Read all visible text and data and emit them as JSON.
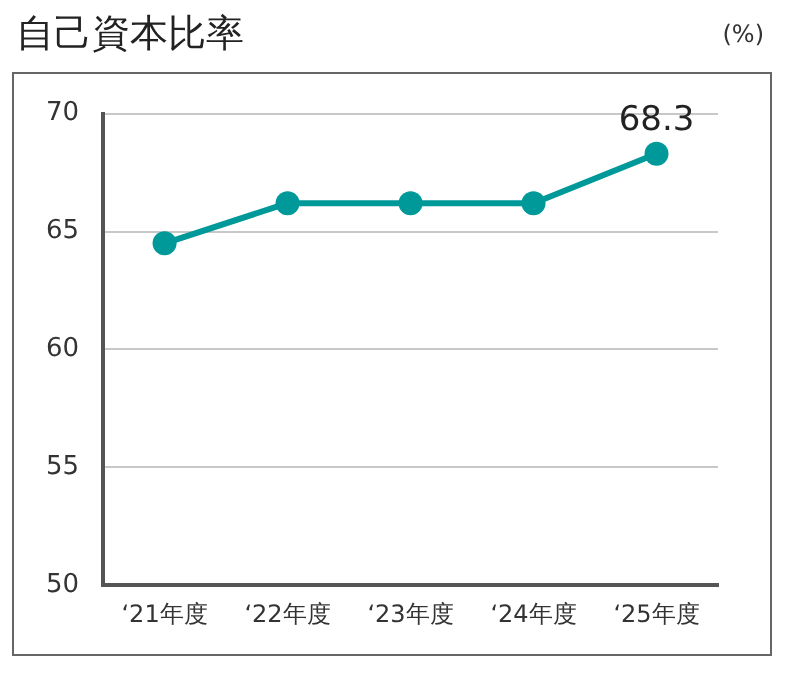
{
  "chart_data": {
    "type": "line",
    "title": "自己資本比率",
    "ylabel": "(%)",
    "categories": [
      "‘21年度",
      "‘22年度",
      "‘23年度",
      "‘24年度",
      "‘25年度"
    ],
    "series": [
      {
        "color": "#00999a",
        "values": [
          64.5,
          66.2,
          66.2,
          66.2,
          68.3
        ],
        "value_labels": [
          null,
          null,
          null,
          null,
          "68.3"
        ]
      }
    ],
    "ylim": [
      50,
      70
    ],
    "yticks": [
      50,
      55,
      60,
      65,
      70
    ],
    "grid": "y",
    "legend": false,
    "marker": "circle",
    "line_style": "solid"
  }
}
